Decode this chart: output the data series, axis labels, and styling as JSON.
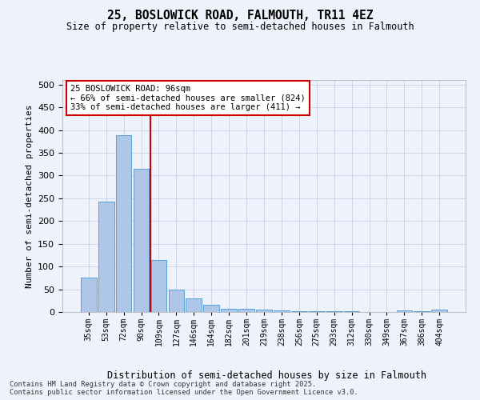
{
  "title": "25, BOSLOWICK ROAD, FALMOUTH, TR11 4EZ",
  "subtitle": "Size of property relative to semi-detached houses in Falmouth",
  "xlabel": "Distribution of semi-detached houses by size in Falmouth",
  "ylabel": "Number of semi-detached properties",
  "categories": [
    "35sqm",
    "53sqm",
    "72sqm",
    "90sqm",
    "109sqm",
    "127sqm",
    "146sqm",
    "164sqm",
    "182sqm",
    "201sqm",
    "219sqm",
    "238sqm",
    "256sqm",
    "275sqm",
    "293sqm",
    "312sqm",
    "330sqm",
    "349sqm",
    "367sqm",
    "386sqm",
    "404sqm"
  ],
  "values": [
    75,
    242,
    388,
    315,
    114,
    50,
    30,
    15,
    7,
    7,
    5,
    3,
    2,
    2,
    1,
    1,
    0,
    0,
    4,
    1,
    5
  ],
  "bar_color": "#aec6e8",
  "bar_edge_color": "#5a9fd4",
  "vline_x": 3.5,
  "vline_color": "#cc0000",
  "annotation_title": "25 BOSLOWICK ROAD: 96sqm",
  "annotation_line1": "← 66% of semi-detached houses are smaller (824)",
  "annotation_line2": "33% of semi-detached houses are larger (411) →",
  "annotation_box_color": "#ffffff",
  "annotation_box_edge": "#cc0000",
  "ylim": [
    0,
    510
  ],
  "yticks": [
    0,
    50,
    100,
    150,
    200,
    250,
    300,
    350,
    400,
    450,
    500
  ],
  "footer_line1": "Contains HM Land Registry data © Crown copyright and database right 2025.",
  "footer_line2": "Contains public sector information licensed under the Open Government Licence v3.0.",
  "bg_color": "#eef2fb",
  "grid_color": "#c8d0e8"
}
